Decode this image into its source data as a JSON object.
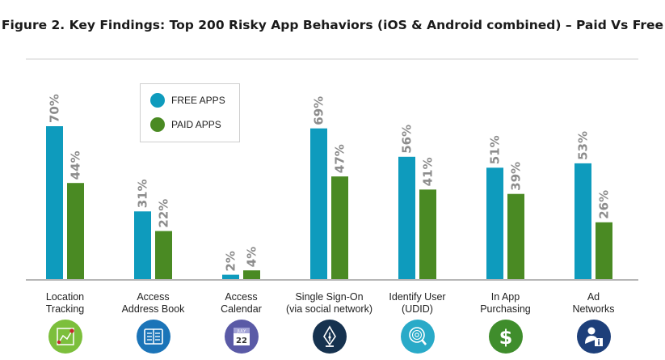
{
  "title": "Figure 2. Key Findings: Top 200 Risky App Behaviors (iOS & Android combined) – Paid Vs Free",
  "chart_data": {
    "type": "bar",
    "categories": [
      [
        "Location",
        "Tracking"
      ],
      [
        "Access",
        "Address Book"
      ],
      [
        "Access",
        "Calendar"
      ],
      [
        "Single Sign-On",
        "(via social network)"
      ],
      [
        "Identify User",
        "(UDID)"
      ],
      [
        "In App",
        "Purchasing"
      ],
      [
        "Ad",
        "Networks"
      ]
    ],
    "series": [
      {
        "name": "FREE APPS",
        "values": [
          70,
          31,
          2,
          69,
          56,
          51,
          53
        ],
        "labels": [
          "70%",
          "31%",
          "2%",
          "69%",
          "56%",
          "51%",
          "53%"
        ],
        "color": "#0e9bbd"
      },
      {
        "name": "PAID APPS",
        "values": [
          44,
          22,
          4,
          47,
          41,
          39,
          26
        ],
        "labels": [
          "44%",
          "22%",
          "4%",
          "47%",
          "41%",
          "39%",
          "26%"
        ],
        "color": "#4a8a23"
      }
    ],
    "ylim": [
      0,
      80
    ],
    "legend_position": "top-left",
    "grid": false
  },
  "icons": [
    {
      "name": "map-route-icon",
      "color": "#7cbf3c"
    },
    {
      "name": "address-book-icon",
      "color": "#1b74b8"
    },
    {
      "name": "calendar-icon",
      "color": "#5a5aa6",
      "month": "JULY",
      "day": "22"
    },
    {
      "name": "fountain-pen-icon",
      "color": "#16324f"
    },
    {
      "name": "fingerprint-search-icon",
      "color": "#29aac8"
    },
    {
      "name": "dollar-icon",
      "color": "#3f8d2c"
    },
    {
      "name": "user-info-icon",
      "color": "#1d3f7a"
    }
  ]
}
